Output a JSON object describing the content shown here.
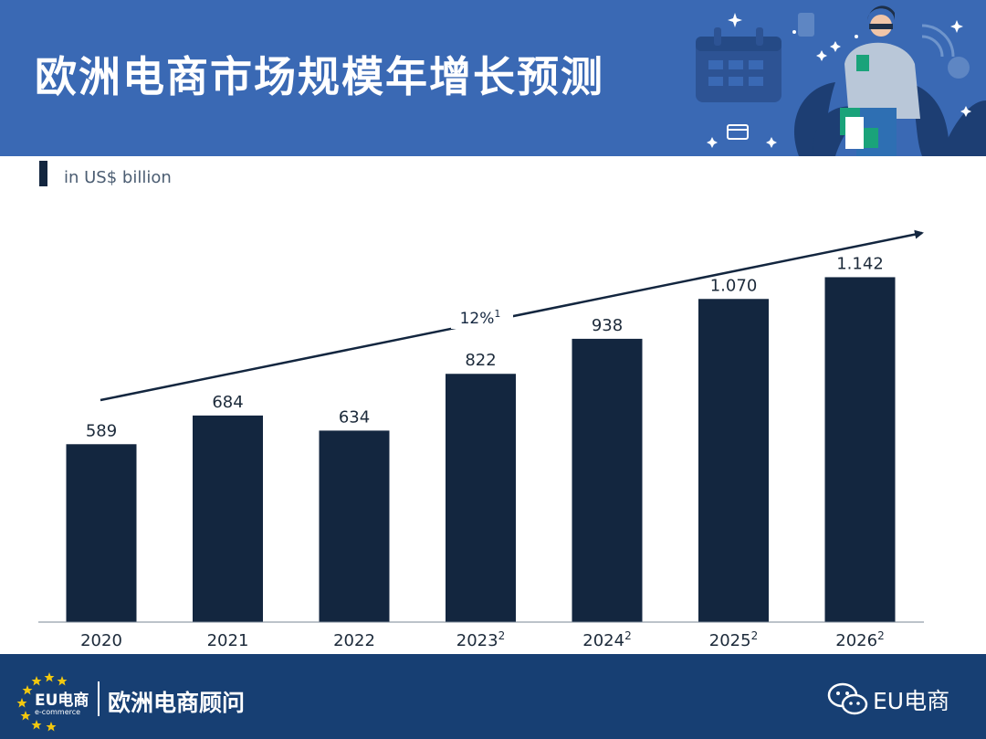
{
  "header": {
    "title": "欧洲电商市场规模年增长预测"
  },
  "unit_label": "in US$ billion",
  "chart_data": {
    "type": "bar",
    "categories": [
      "2020",
      "2021",
      "2022",
      "2023",
      "2024",
      "2025",
      "2026"
    ],
    "category_superscripts": [
      "",
      "",
      "",
      "2",
      "2",
      "2",
      "2"
    ],
    "values": [
      589,
      684,
      634,
      822,
      938,
      1070,
      1142
    ],
    "value_labels": [
      "589",
      "684",
      "634",
      "822",
      "938",
      "1.070",
      "1.142"
    ],
    "ylim": [
      0,
      1200
    ],
    "bar_color": "#13263f",
    "trend_annotation": "12%",
    "trend_annotation_superscript": "1",
    "grid": false,
    "legend": "none"
  },
  "footer": {
    "logo_text": "EU电商",
    "logo_subtext": "e-commerce",
    "brand_name": "欧洲电商顾问",
    "account_icon": "wechat-icon",
    "account_name": "EU电商"
  },
  "colors": {
    "header_bg": "#3a69b4",
    "footer_bg": "#173f73",
    "bar": "#13263f",
    "star": "#f2c80f"
  }
}
